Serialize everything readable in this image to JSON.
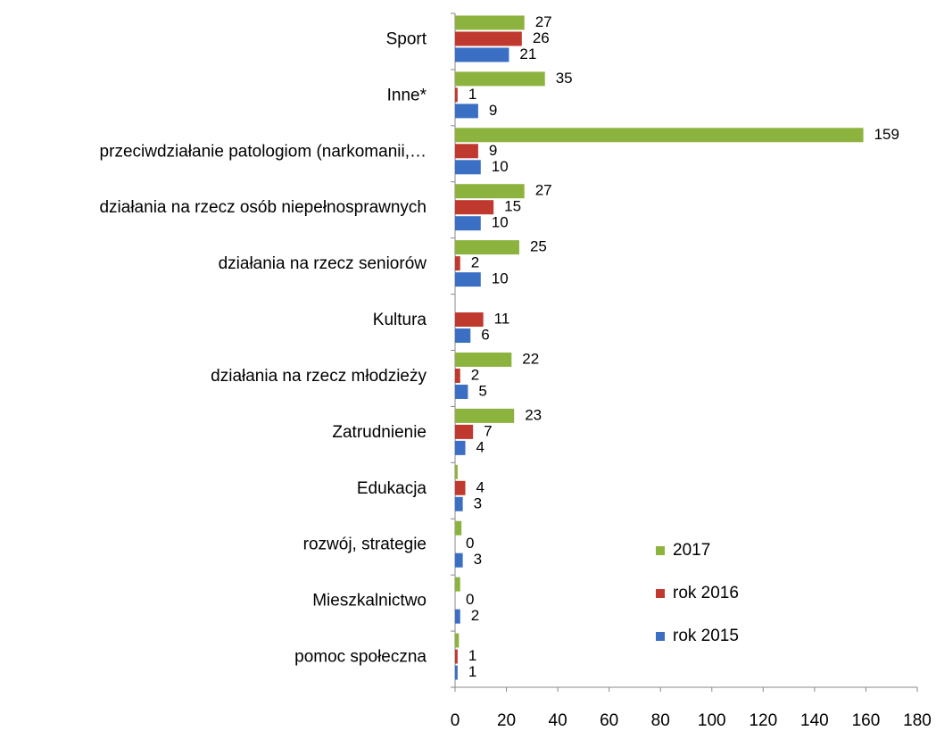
{
  "chart_data": {
    "type": "hbar",
    "categories": [
      "Sport",
      "Inne*",
      "przeciwdziałanie patologiom (narkomanii,…",
      "działania na rzecz osób niepełnosprawnych",
      "działania na rzecz seniorów",
      "Kultura",
      "działania na rzecz młodzieży",
      "Zatrudnienie",
      "Edukacja",
      "rozwój, strategie",
      "Mieszkalnictwo",
      "pomoc społeczna"
    ],
    "series": [
      {
        "name": "2017",
        "color": "#8db33f",
        "values": [
          27,
          35,
          159,
          27,
          25,
          null,
          22,
          23,
          1,
          2.5,
          2,
          1.5
        ],
        "value_labels": [
          "27",
          "35",
          "159",
          "27",
          "25",
          null,
          "22",
          "23",
          null,
          null,
          null,
          null
        ]
      },
      {
        "name": "rok 2016",
        "color": "#c0392f",
        "values": [
          26,
          1,
          9,
          15,
          2,
          11,
          2,
          7,
          4,
          0,
          0,
          1
        ]
      },
      {
        "name": "rok 2015",
        "color": "#3a6fc4",
        "values": [
          21,
          9,
          10,
          10,
          10,
          6,
          5,
          4,
          3,
          3,
          2,
          1
        ]
      }
    ],
    "xlim": [
      0,
      180
    ],
    "xticks": [
      0,
      20,
      40,
      60,
      80,
      100,
      120,
      140,
      160,
      180
    ],
    "grid": false,
    "legend": "lower right"
  }
}
